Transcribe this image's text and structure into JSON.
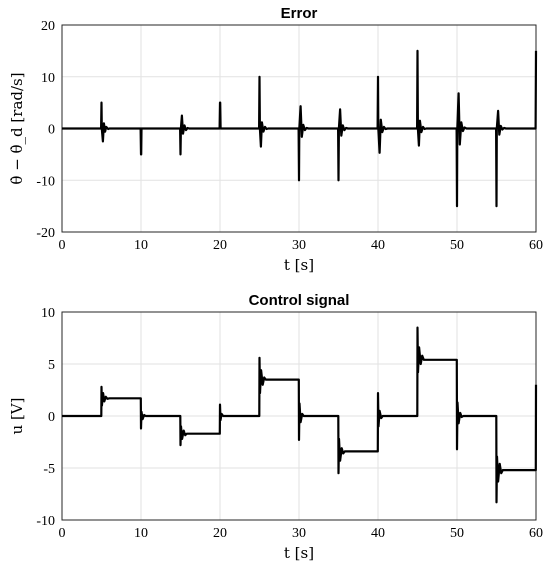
{
  "chart_data": [
    {
      "type": "line",
      "title": "Error",
      "xlabel": "t [s]",
      "ylabel": "θ̇ − θ̇_d [rad/s]",
      "xlim": [
        0,
        60
      ],
      "ylim": [
        -20,
        20
      ],
      "xticks": [
        "0",
        "10",
        "20",
        "30",
        "40",
        "50",
        "60"
      ],
      "yticks": [
        "-20",
        "-10",
        "0",
        "10",
        "20"
      ],
      "grid": true,
      "series": [
        {
          "color": "#000000",
          "x": [
            0,
            4.95,
            5.0,
            5.04,
            5.18,
            5.3,
            5.45,
            5.6,
            5.85,
            6.0,
            9.95,
            10.0,
            10.02,
            10.06,
            14.95,
            15.0,
            15.05,
            15.18,
            15.32,
            15.5,
            15.7,
            15.9,
            16.1,
            19.95,
            20.0,
            20.03,
            20.07,
            24.95,
            25.0,
            25.05,
            25.18,
            25.3,
            25.5,
            25.7,
            25.9,
            26.1,
            29.95,
            30.0,
            30.04,
            30.2,
            30.35,
            30.55,
            30.75,
            30.95,
            31.2,
            34.95,
            35.0,
            35.05,
            35.2,
            35.35,
            35.55,
            35.75,
            35.95,
            36.2,
            39.95,
            40.0,
            40.04,
            40.2,
            40.35,
            40.55,
            40.75,
            40.95,
            41.2,
            44.95,
            45.0,
            45.05,
            45.18,
            45.3,
            45.5,
            45.7,
            45.9,
            46.1,
            49.95,
            50.0,
            50.04,
            50.2,
            50.35,
            50.55,
            50.75,
            50.95,
            51.2,
            54.95,
            55.0,
            55.04,
            55.2,
            55.35,
            55.55,
            55.75,
            55.95,
            56.2,
            59.95,
            60.0
          ],
          "y": [
            0,
            0,
            5,
            0,
            -2.5,
            1,
            -0.6,
            0.3,
            -0.1,
            0,
            0,
            -5,
            -5,
            0,
            0,
            -5,
            0,
            2.5,
            -1,
            0.6,
            -0.3,
            0.1,
            0,
            0,
            5,
            5,
            0,
            0,
            10,
            0,
            -3.5,
            1.2,
            -0.6,
            0.3,
            -0.1,
            0,
            0,
            -10,
            0,
            4.3,
            -1.6,
            0.7,
            -0.3,
            0.1,
            0,
            0,
            -10,
            0,
            3.7,
            -1.4,
            0.6,
            -0.3,
            0.1,
            0,
            0,
            10,
            0,
            -4.7,
            1.7,
            -0.7,
            0.3,
            -0.1,
            0,
            0,
            15,
            0,
            -3.3,
            1.5,
            -0.7,
            0.3,
            -0.1,
            0,
            0,
            -15,
            0,
            6.8,
            -3.1,
            1.2,
            -0.5,
            0.2,
            0,
            0,
            -15,
            0,
            3.4,
            -1.2,
            0.5,
            -0.2,
            0.1,
            0,
            0,
            15
          ]
        }
      ]
    },
    {
      "type": "line",
      "title": "Control signal",
      "xlabel": "t [s]",
      "ylabel": "u [V]",
      "xlim": [
        0,
        60
      ],
      "ylim": [
        -10,
        10
      ],
      "xticks": [
        "0",
        "10",
        "20",
        "30",
        "40",
        "50",
        "60"
      ],
      "yticks": [
        "-10",
        "-5",
        "0",
        "5",
        "10"
      ],
      "grid": true,
      "series": [
        {
          "color": "#000000",
          "x": [
            0,
            4.98,
            5.0,
            5.05,
            5.2,
            5.35,
            5.55,
            5.75,
            6.0,
            9.98,
            10.0,
            10.06,
            10.2,
            10.4,
            10.6,
            14.98,
            15.0,
            15.06,
            15.2,
            15.4,
            15.6,
            15.8,
            19.98,
            20.0,
            20.06,
            20.2,
            20.4,
            24.98,
            25.0,
            25.06,
            25.2,
            25.4,
            25.6,
            25.8,
            29.98,
            30.0,
            30.06,
            30.2,
            30.4,
            30.6,
            34.98,
            35.0,
            35.06,
            35.2,
            35.4,
            35.6,
            35.8,
            39.98,
            40.0,
            40.06,
            40.2,
            40.4,
            40.6,
            44.98,
            45.0,
            45.06,
            45.2,
            45.4,
            45.6,
            45.8,
            49.98,
            50.0,
            50.06,
            50.2,
            50.4,
            50.6,
            50.8,
            54.98,
            55.0,
            55.06,
            55.2,
            55.4,
            55.6,
            55.8,
            59.98,
            60.0
          ],
          "y": [
            0,
            0,
            2.8,
            1.0,
            2.2,
            1.4,
            1.85,
            1.65,
            1.7,
            1.7,
            -1.2,
            0.4,
            -0.3,
            0.1,
            0,
            0,
            -2.8,
            -1.0,
            -2.2,
            -1.4,
            -1.85,
            -1.7,
            -1.7,
            1.1,
            -0.4,
            0.2,
            0,
            0,
            5.6,
            2.2,
            4.4,
            3.0,
            3.7,
            3.5,
            3.5,
            -2.3,
            1.2,
            -0.6,
            0.2,
            0,
            0,
            -5.5,
            -2.2,
            -4.3,
            -3.1,
            -3.6,
            -3.4,
            -3.4,
            2.2,
            -1.0,
            0.5,
            -0.2,
            0,
            0,
            8.5,
            4.2,
            6.6,
            5.0,
            5.8,
            5.4,
            5.4,
            -3.2,
            1.3,
            -0.7,
            0.3,
            -0.1,
            0,
            0,
            -8.3,
            -3.9,
            -6.3,
            -4.6,
            -5.5,
            -5.2,
            -5.2,
            3.0
          ]
        }
      ]
    }
  ]
}
